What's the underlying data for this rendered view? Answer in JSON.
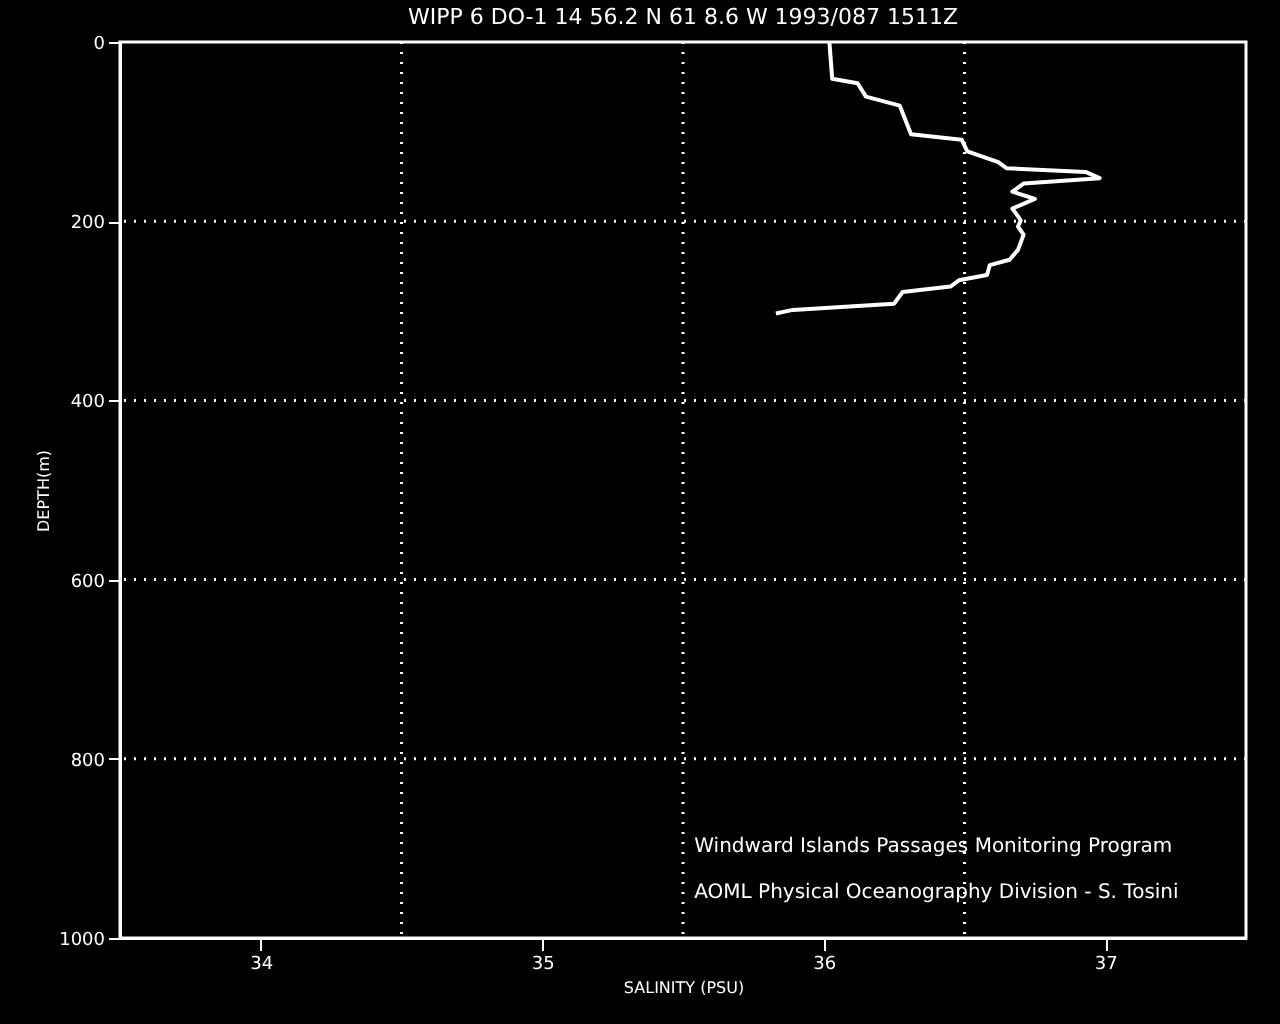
{
  "chart_data": {
    "type": "line",
    "title": "WIPP 6 DO-1  14 56.2 N  61  8.6 W  1993/087 1511Z",
    "xlabel": "SALINITY (PSU)",
    "ylabel": "DEPTH(m)",
    "series": [
      {
        "color": "#ffffff",
        "x": [
          36.02,
          36.03,
          36.12,
          36.15,
          36.27,
          36.31,
          36.49,
          36.51,
          36.62,
          36.65,
          36.93,
          36.98,
          36.71,
          36.67,
          36.75,
          36.67,
          36.7,
          36.69,
          36.71,
          36.69,
          36.66,
          36.59,
          36.58,
          36.48,
          36.45,
          36.28,
          36.25,
          35.89,
          35.83
        ],
        "values": [
          0,
          41,
          46,
          61,
          71,
          103,
          109,
          122,
          134,
          141,
          145,
          152,
          158,
          167,
          175,
          186,
          199,
          206,
          215,
          232,
          243,
          249,
          260,
          266,
          273,
          279,
          292,
          299,
          303
        ]
      }
    ],
    "xlim": [
      33.5,
      37.5
    ],
    "xticks": [
      34,
      35,
      36,
      37
    ],
    "ylim": [
      1000,
      0
    ],
    "yticks": [
      0,
      200,
      400,
      600,
      800,
      1000
    ],
    "ref_lines": [
      {
        "axis": "x",
        "value": 34.5,
        "line_style": "dotted",
        "color": "#ffffff"
      },
      {
        "axis": "x",
        "value": 35.5,
        "line_style": "dotted",
        "color": "#ffffff"
      },
      {
        "axis": "x",
        "value": 36.5,
        "line_style": "dotted",
        "color": "#ffffff"
      },
      {
        "axis": "y",
        "value": 200,
        "line_style": "dotted",
        "color": "#ffffff"
      },
      {
        "axis": "y",
        "value": 400,
        "line_style": "dotted",
        "color": "#ffffff"
      },
      {
        "axis": "y",
        "value": 600,
        "line_style": "dotted",
        "color": "#ffffff"
      },
      {
        "axis": "y",
        "value": 800,
        "line_style": "dotted",
        "color": "#ffffff"
      }
    ],
    "annotations": [
      "Windward Islands Passages Monitoring Program",
      "AOML Physical Oceanography Division - S. Tosini"
    ],
    "grid": false,
    "line_style": "solid",
    "marker": "none"
  }
}
